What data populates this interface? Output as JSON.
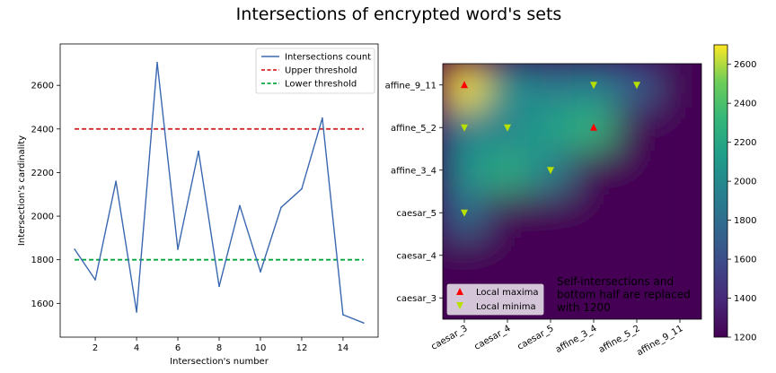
{
  "title": "Intersections of encrypted word's sets",
  "chart_data": [
    {
      "type": "line",
      "xlabel": "Intersection's number",
      "ylabel": "Intersection's cardinality",
      "xlim": [
        0.3,
        15.7
      ],
      "ylim": [
        1445,
        2790
      ],
      "xticks": [
        2,
        4,
        6,
        8,
        10,
        12,
        14
      ],
      "yticks": [
        1600,
        1800,
        2000,
        2200,
        2400,
        2600
      ],
      "x": [
        1,
        2,
        3,
        4,
        5,
        6,
        7,
        8,
        9,
        10,
        11,
        12,
        13,
        14,
        15
      ],
      "series": [
        {
          "name": "Intersections count",
          "color": "#3a68b0",
          "style": "solid",
          "values": [
            1848,
            1708,
            2160,
            1560,
            2705,
            1848,
            2298,
            1678,
            2048,
            1745,
            2040,
            2125,
            2450,
            1548,
            1510
          ]
        }
      ],
      "thresholds": [
        {
          "name": "Upper threshold",
          "color": "#d62728",
          "style": "dashed",
          "value": 2400,
          "x_range": [
            1,
            15
          ]
        },
        {
          "name": "Lower threshold",
          "color": "#00a63c",
          "style": "dashed",
          "value": 1800,
          "x_range": [
            1,
            15
          ]
        }
      ],
      "legend": "top-right"
    },
    {
      "type": "heatmap",
      "x_categories": [
        "caesar_3",
        "caesar_4",
        "caesar_5",
        "affine_3_4",
        "affine_5_2",
        "affine_9_11"
      ],
      "y_categories": [
        "caesar_3",
        "caesar_4",
        "caesar_5",
        "affine_3_4",
        "affine_5_2",
        "affine_9_11"
      ],
      "colorbar": {
        "min": 1200,
        "max": 2700,
        "ticks": [
          1200,
          1400,
          1600,
          1800,
          2000,
          2200,
          2400,
          2600
        ],
        "colormap": "viridis"
      },
      "values": [
        [
          1200,
          1200,
          1200,
          1200,
          1200,
          1200
        ],
        [
          1200,
          1200,
          1200,
          1200,
          1200,
          1200
        ],
        [
          1800,
          1200,
          1200,
          1200,
          1200,
          1200
        ],
        [
          2050,
          2250,
          1950,
          1200,
          1200,
          1200
        ],
        [
          1950,
          1950,
          2150,
          2300,
          1200,
          1200
        ],
        [
          2700,
          2050,
          1900,
          1950,
          1700,
          1200
        ]
      ],
      "annotation": "Self-intersections and\nbottom half are replaced\nwith 1200",
      "local_maxima": [
        {
          "x": "caesar_3",
          "y": "affine_9_11"
        },
        {
          "x": "affine_3_4",
          "y": "affine_5_2"
        }
      ],
      "local_minima": [
        {
          "x": "affine_3_4",
          "y": "affine_9_11"
        },
        {
          "x": "affine_5_2",
          "y": "affine_9_11"
        },
        {
          "x": "caesar_3",
          "y": "affine_5_2"
        },
        {
          "x": "caesar_4",
          "y": "affine_5_2"
        },
        {
          "x": "caesar_5",
          "y": "affine_3_4"
        },
        {
          "x": "caesar_3",
          "y": "caesar_5"
        }
      ],
      "legend": [
        {
          "name": "Local maxima",
          "color": "#ff0000",
          "marker": "triangle-up"
        },
        {
          "name": "Local minima",
          "color": "#b7e000",
          "marker": "triangle-down"
        }
      ]
    }
  ]
}
